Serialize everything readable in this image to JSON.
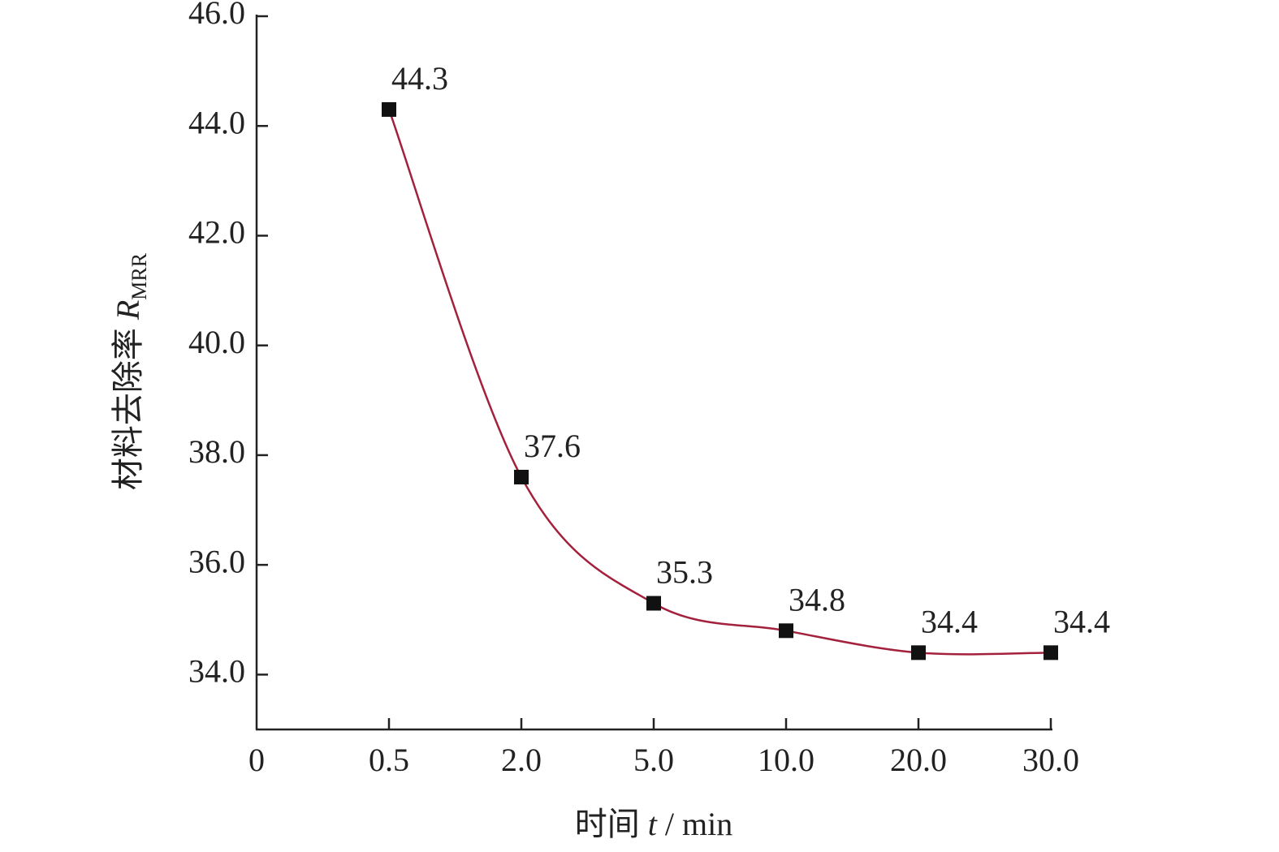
{
  "chart_data": {
    "type": "line",
    "categories": [
      "0",
      "0.5",
      "2.0",
      "5.0",
      "10.0",
      "20.0",
      "30.0"
    ],
    "series": [
      {
        "color": "#a3213c",
        "values": [
          null,
          44.3,
          37.6,
          35.3,
          34.8,
          34.4,
          34.4
        ]
      }
    ],
    "ylim": [
      33.0,
      46.0
    ],
    "yticks": [
      {
        "value": 34,
        "label": "34.0"
      },
      {
        "value": 36,
        "label": "36.0"
      },
      {
        "value": 38,
        "label": "38.0"
      },
      {
        "value": 40,
        "label": "40.0"
      },
      {
        "value": 42,
        "label": "42.0"
      },
      {
        "value": 44,
        "label": "44.0"
      },
      {
        "value": 46,
        "label": "46.0"
      }
    ],
    "x_label": [
      "时间 ",
      "t",
      " / min"
    ],
    "y_label": [
      "材料去除率 ",
      "R",
      "MRR"
    ],
    "marker_color": "#111111"
  }
}
